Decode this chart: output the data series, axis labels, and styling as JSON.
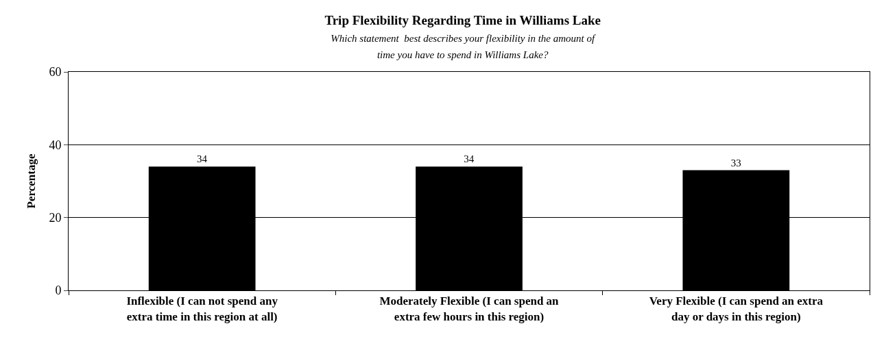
{
  "chart_data": {
    "type": "bar",
    "title": "Trip Flexibility Regarding Time in Williams Lake",
    "subtitle": "Which statement  best describes your flexibility in the amount of time you have to spend in Williams Lake?",
    "ylabel": "Percentage",
    "categories": [
      "Inflexible (I can not spend any extra time in this region at all)",
      "Moderately Flexible (I can spend an extra few hours in this region)",
      "Very Flexible (I can spend an extra day or days in this region)"
    ],
    "values": [
      34,
      34,
      33
    ],
    "color": "#000000",
    "ylim": [
      0,
      60
    ],
    "yticks": [
      0,
      20,
      40,
      60
    ],
    "grid": "y",
    "data_labels": true
  }
}
